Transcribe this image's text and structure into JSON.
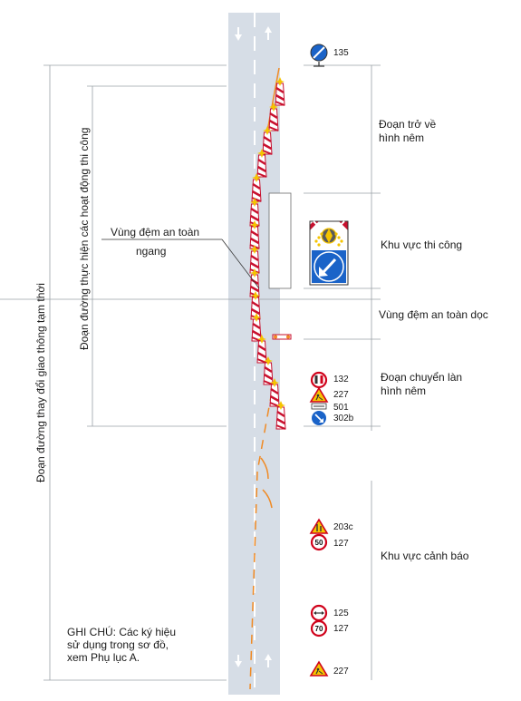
{
  "zones": {
    "return_taper": "Đoạn trở về\nhình nêm",
    "work_area": "Khu vực thi công",
    "longitudinal_buffer": "Vùng đệm an toàn dọc",
    "transition_taper": "Đoạn chuyển làn\nhình nêm",
    "warning_area": "Khu vực cảnh báo"
  },
  "buffer_label": {
    "line1": "Vùng đệm an toàn",
    "line2": "ngang"
  },
  "vertical_labels": {
    "outer": "Đoạn đường thay đổi giao thông tạm thời",
    "inner": "Đoạn đường thực hiện các hoạt động thi công"
  },
  "sign_codes": {
    "end_restriction": "135",
    "no_overtaking": "132",
    "road_works_upper": "227",
    "auxiliary": "501",
    "keep_right": "302b",
    "road_narrows": "203c",
    "speed_50": "127",
    "width_limit": "125",
    "speed_70": "127",
    "road_works_lower": "227"
  },
  "speed_values": {
    "upper": "50",
    "lower": "70"
  },
  "note": "GHI CHÚ: Các ký hiệu\nsử dụng trong sơ đồ,\nxem Phụ lục A.",
  "colors": {
    "road": "#d6dde6",
    "lane_marking": "#ffffff",
    "cone_stripe": "#c8102e",
    "warning_lamp": "#f5c400",
    "taper_line": "#f08a24",
    "sign_blue": "#1a63c8",
    "sign_red": "#d0021b",
    "sign_yellow": "#f5c400",
    "dimension_line": "#9aa0a6"
  },
  "icons": [
    "arrow-down-icon",
    "arrow-up-icon",
    "traffic-cone-icon",
    "road-sign-icon",
    "arrow-board-icon"
  ]
}
